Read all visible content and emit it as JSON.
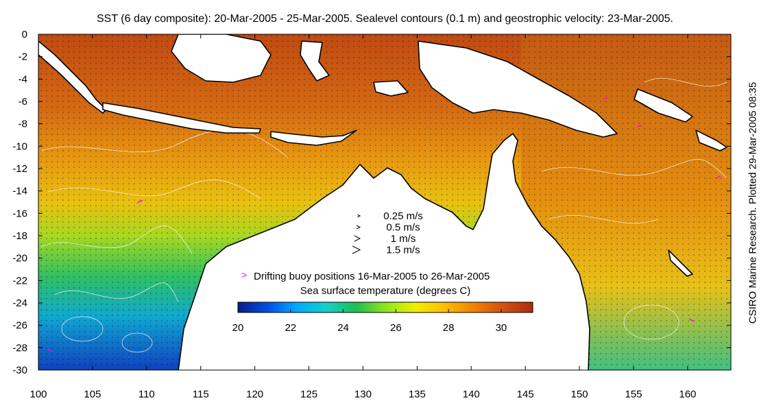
{
  "title": "SST (6 day composite): 20-Mar-2005 - 25-Mar-2005. Sealevel contours (0.1 m) and geostrophic velocity: 23-Mar-2005.",
  "credit": "CSIRO Marine Research. Plotted 29-Mar-2005 08:35",
  "velocity_legend": [
    {
      "label": "0.25 m/s",
      "speed": 0.25
    },
    {
      "label": "0.5 m/s",
      "speed": 0.5
    },
    {
      "label": "1 m/s",
      "speed": 1
    },
    {
      "label": "1.5 m/s",
      "speed": 1.5
    }
  ],
  "buoy_legend": {
    "label": "Drifting buoy positions 16-Mar-2005 to 26-Mar-2005",
    "color": "#ff00ff"
  },
  "colorbar": {
    "title": "Sea surface temperature (degrees C)",
    "range": [
      20,
      31.2
    ],
    "ticks": [
      "20",
      "22",
      "24",
      "26",
      "28",
      "30"
    ],
    "colors": [
      "#0a1a8c",
      "#0050e0",
      "#00aaff",
      "#14d2c8",
      "#1ebe50",
      "#8ce61e",
      "#f0f000",
      "#ffbe00",
      "#f08200",
      "#d25014",
      "#b4280a"
    ]
  },
  "map": {
    "lon_range": [
      100,
      164
    ],
    "lat_range": [
      -30,
      0
    ],
    "lon_ticks": [
      "100",
      "105",
      "110",
      "115",
      "120",
      "125",
      "130",
      "135",
      "140",
      "145",
      "150",
      "155",
      "160"
    ],
    "lat_ticks": [
      "0",
      "-2",
      "-4",
      "-6",
      "-8",
      "-10",
      "-12",
      "-14",
      "-16",
      "-18",
      "-20",
      "-22",
      "-24",
      "-26",
      "-28",
      "-30"
    ],
    "land_color": "#ffffff",
    "coast_color": "#000000",
    "contour_color": "#ffffff"
  }
}
